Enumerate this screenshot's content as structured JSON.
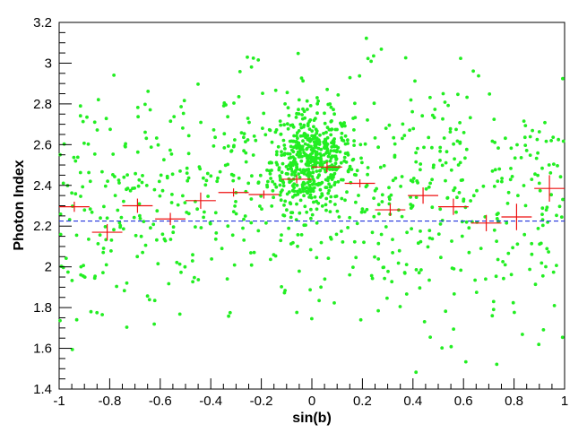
{
  "chart_data": {
    "type": "scatter",
    "title": "",
    "xlabel": "sin(b)",
    "ylabel": "Photon Index",
    "xlim": [
      -1,
      1
    ],
    "ylim": [
      1.4,
      3.2
    ],
    "x_ticks": [
      "-1",
      "-0.8",
      "-0.6",
      "-0.4",
      "-0.2",
      "0",
      "0.2",
      "0.4",
      "0.6",
      "0.8",
      "1"
    ],
    "y_ticks": [
      "1.4",
      "1.6",
      "1.8",
      "2",
      "2.2",
      "2.4",
      "2.6",
      "2.8",
      "3",
      "3.2"
    ],
    "grid": false,
    "reference_line": {
      "y": 2.225,
      "color": "#2233dd",
      "style": "dashed"
    },
    "colors": {
      "points": "#22ee22",
      "binned": "#ee1111",
      "reference": "#2233dd"
    },
    "series": [
      {
        "kind": "scatter_points",
        "count_estimate": 1200,
        "center_cluster": {
          "x_mean": 0.0,
          "x_spread": 0.08,
          "y_mean": 2.52,
          "y_spread": 0.12
        },
        "background": {
          "x_range": [
            -1,
            1
          ],
          "y_mean": 2.28,
          "y_spread": 0.3
        }
      },
      {
        "kind": "binned_means",
        "points": [
          {
            "x": -0.94,
            "y": 2.295,
            "xerr": 0.06,
            "yerr": 0.025
          },
          {
            "x": -0.81,
            "y": 2.17,
            "xerr": 0.06,
            "yerr": 0.04
          },
          {
            "x": -0.69,
            "y": 2.3,
            "xerr": 0.06,
            "yerr": 0.035
          },
          {
            "x": -0.56,
            "y": 2.235,
            "xerr": 0.06,
            "yerr": 0.03
          },
          {
            "x": -0.44,
            "y": 2.325,
            "xerr": 0.06,
            "yerr": 0.04
          },
          {
            "x": -0.31,
            "y": 2.365,
            "xerr": 0.06,
            "yerr": 0.02
          },
          {
            "x": -0.19,
            "y": 2.355,
            "xerr": 0.06,
            "yerr": 0.02
          },
          {
            "x": -0.06,
            "y": 2.43,
            "xerr": 0.06,
            "yerr": 0.02
          },
          {
            "x": 0.06,
            "y": 2.49,
            "xerr": 0.06,
            "yerr": 0.025
          },
          {
            "x": 0.19,
            "y": 2.41,
            "xerr": 0.06,
            "yerr": 0.02
          },
          {
            "x": 0.31,
            "y": 2.28,
            "xerr": 0.06,
            "yerr": 0.03
          },
          {
            "x": 0.44,
            "y": 2.35,
            "xerr": 0.06,
            "yerr": 0.04
          },
          {
            "x": 0.56,
            "y": 2.295,
            "xerr": 0.06,
            "yerr": 0.04
          },
          {
            "x": 0.69,
            "y": 2.215,
            "xerr": 0.06,
            "yerr": 0.04
          },
          {
            "x": 0.81,
            "y": 2.245,
            "xerr": 0.06,
            "yerr": 0.065
          },
          {
            "x": 0.94,
            "y": 2.385,
            "xerr": 0.06,
            "yerr": 0.065
          }
        ]
      }
    ]
  }
}
